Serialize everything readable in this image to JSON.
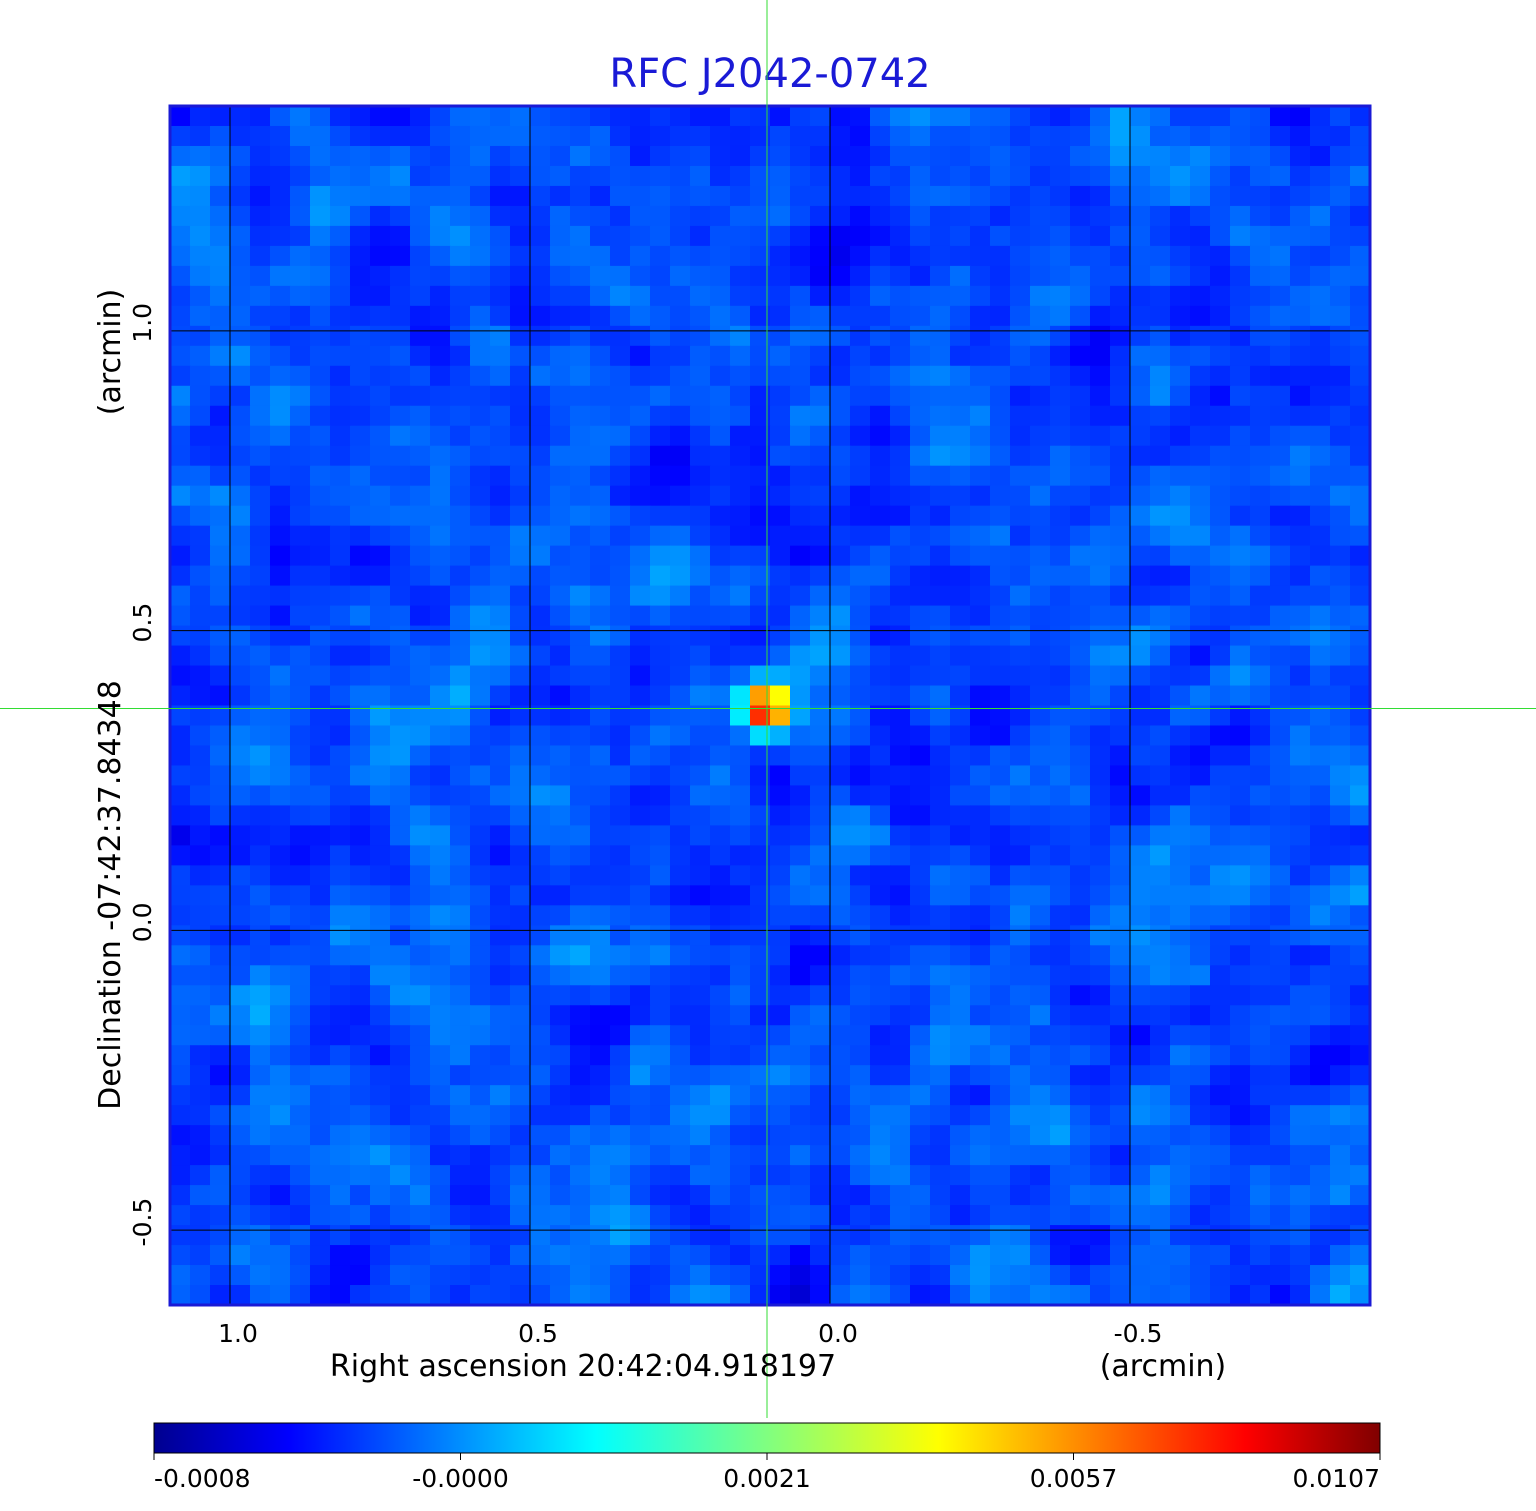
{
  "chart_data": {
    "type": "heatmap",
    "title": "RFC J2042-0742",
    "xlabel": "Right ascension  20:42:04.918197",
    "xunit": "(arcmin)",
    "ylabel": "Declination  -07:42:37.84348",
    "yunit": "(arcmin)",
    "xlim": [
      1.1,
      -0.9
    ],
    "ylim": [
      -0.625,
      1.375
    ],
    "xticks": [
      {
        "value": 1.0,
        "label": "1.0"
      },
      {
        "value": 0.5,
        "label": "0.5"
      },
      {
        "value": 0.0,
        "label": "0.0"
      },
      {
        "value": -0.5,
        "label": "-0.5"
      }
    ],
    "yticks": [
      {
        "value": -0.5,
        "label": "-0.5"
      },
      {
        "value": 0.0,
        "label": "0.0"
      },
      {
        "value": 0.5,
        "label": "0.5"
      },
      {
        "value": 1.0,
        "label": "1.0"
      }
    ],
    "grid": true,
    "crosshair": {
      "x": 0.105,
      "y": 0.37
    },
    "source_peak": {
      "x": 0.105,
      "y": 0.37,
      "value": 0.0107
    },
    "noise_level": -0.0,
    "colorbar": {
      "colormap": "jet",
      "position": "bottom",
      "tick_labels": [
        "-0.0008",
        "-0.0000",
        "0.0021",
        "0.0057",
        "0.0107"
      ]
    },
    "colors": {
      "title": "#1a1ad6",
      "frame": "#1a1ad6",
      "grid": "#000000",
      "crosshair": "#33dd33"
    }
  }
}
